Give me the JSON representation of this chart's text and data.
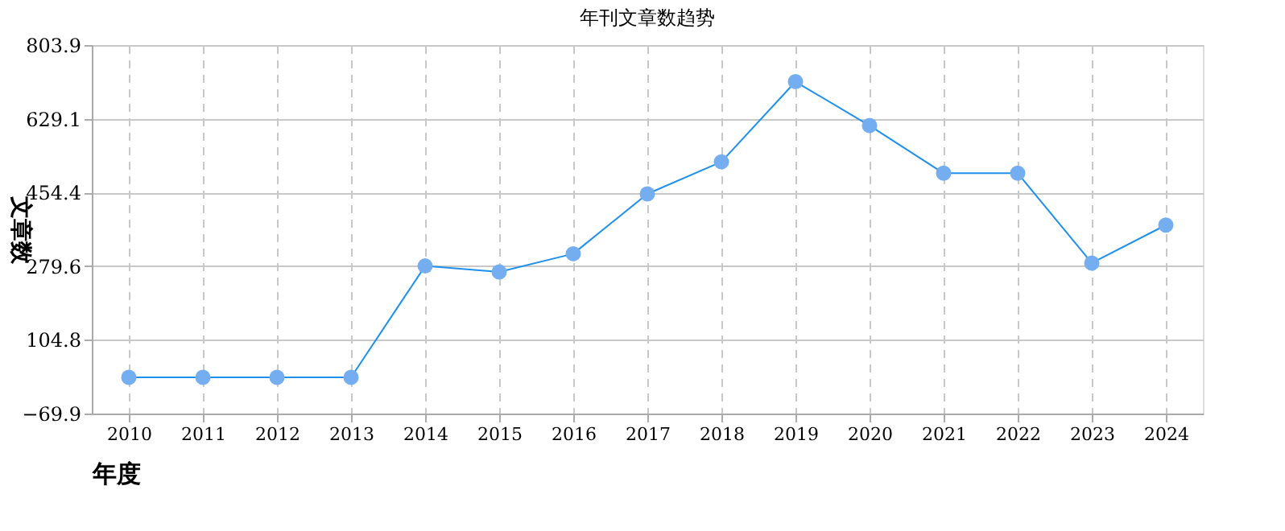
{
  "chart_data": {
    "type": "line",
    "title": "年刊文章数趋势",
    "xlabel": "年度",
    "ylabel": "文章数",
    "categories": [
      "2010",
      "2011",
      "2012",
      "2013",
      "2014",
      "2015",
      "2016",
      "2017",
      "2018",
      "2019",
      "2020",
      "2021",
      "2022",
      "2023",
      "2024"
    ],
    "series": [
      {
        "color": "#1e90ee",
        "colors": [
          "#75aef0",
          "#75aef0",
          "#75aef0",
          "#75aef0",
          "#75aef0",
          "#75aef0",
          "#75aef0",
          "#75aef0",
          "#75aef0",
          "#75aef0",
          "#75aef0",
          "#75aef0",
          "#75aef0",
          "#75aef0",
          "#75aef0"
        ],
        "values": [
          16,
          16,
          16,
          16,
          280,
          266,
          309,
          451,
          527,
          717,
          613,
          500,
          500,
          287,
          377
        ]
      }
    ],
    "ylim": [
      -69.9,
      803.9
    ],
    "yticks": [
      -69.9,
      104.8,
      279.6,
      454.4,
      629.1,
      803.9
    ],
    "grid": true,
    "marker": "circle",
    "line_style": "solid"
  }
}
